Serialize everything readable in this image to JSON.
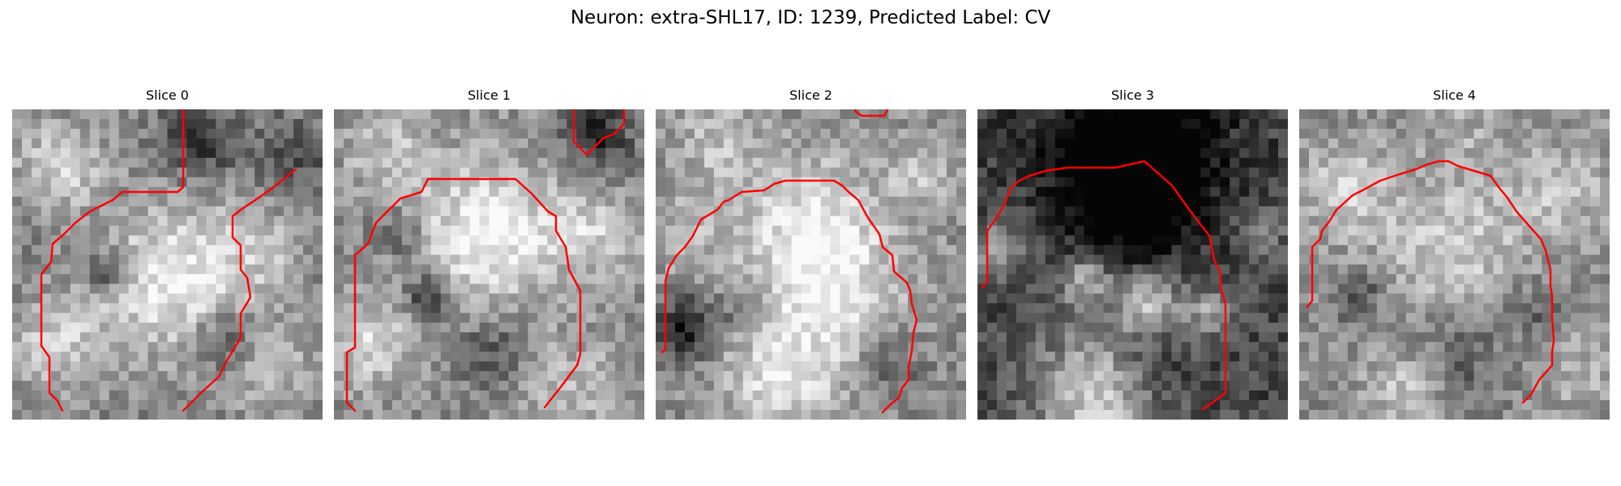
{
  "figure": {
    "title": "Neuron: extra-SHL17, ID: 1239, Predicted Label: CV"
  },
  "contour_color": "#ff0000",
  "slices": [
    {
      "title": "Slice 0"
    },
    {
      "title": "Slice 1"
    },
    {
      "title": "Slice 2"
    },
    {
      "title": "Slice 3"
    },
    {
      "title": "Slice 4"
    }
  ]
}
